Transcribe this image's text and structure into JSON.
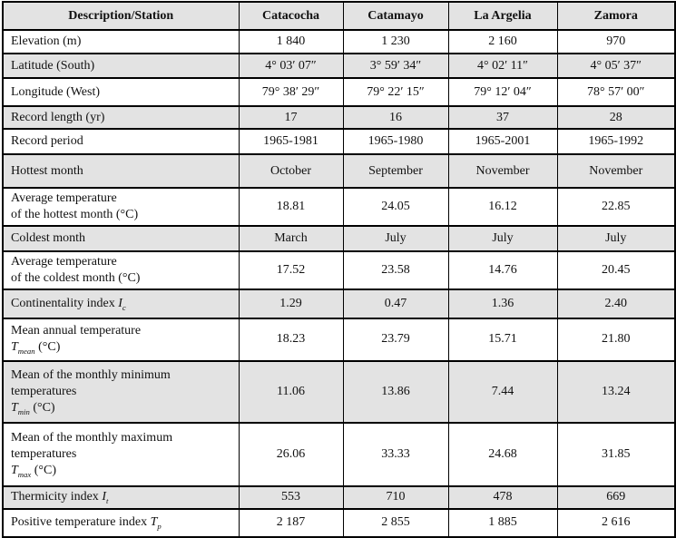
{
  "table": {
    "header": [
      "Description/Station",
      "Catacocha",
      "Catamayo",
      "La Argelia",
      "Zamora"
    ],
    "rows": [
      {
        "label": "Elevation (m)",
        "values": [
          "1 840",
          "1 230",
          "2 160",
          "970"
        ]
      },
      {
        "label": "Latitude (South)",
        "values": [
          "4° 03′ 07″",
          "3° 59′ 34″",
          "4° 02′ 11″",
          "4° 05′ 37″"
        ]
      },
      {
        "label": "Longitude (West)",
        "values": [
          "79° 38′ 29″",
          "79° 22′ 15″",
          "79° 12′ 04″",
          "78° 57′ 00″"
        ]
      },
      {
        "label": "Record length (yr)",
        "values": [
          "17",
          "16",
          "37",
          "28"
        ]
      },
      {
        "label": "Record period",
        "values": [
          "1965-1981",
          "1965-1980",
          "1965-2001",
          "1965-1992"
        ]
      },
      {
        "label": "Hottest month",
        "values": [
          "October",
          "September",
          "November",
          "November"
        ]
      },
      {
        "label": "Average temperature\nof the hottest month (°C)",
        "values": [
          "18.81",
          "24.05",
          "16.12",
          "22.85"
        ]
      },
      {
        "label": "Coldest month",
        "values": [
          "March",
          "July",
          "July",
          "July"
        ]
      },
      {
        "label": "Average temperature\nof the coldest month (°C)",
        "values": [
          "17.52",
          "23.58",
          "14.76",
          "20.45"
        ]
      },
      {
        "label": "Continentality index {I_c}",
        "values": [
          "1.29",
          "0.47",
          "1.36",
          "2.40"
        ]
      },
      {
        "label": "Mean annual temperature\n{T_mean} (°C)",
        "values": [
          "18.23",
          "23.79",
          "15.71",
          "21.80"
        ]
      },
      {
        "label": "Mean of the monthly minimum\ntemperatures\n{T_min} (°C)",
        "values": [
          "11.06",
          "13.86",
          "7.44",
          "13.24"
        ]
      },
      {
        "label": "Mean of the monthly maximum\ntemperatures\n{T_max} (°C)",
        "values": [
          "26.06",
          "33.33",
          "24.68",
          "31.85"
        ]
      },
      {
        "label": "Thermicity index {I_t}",
        "values": [
          "553",
          "710",
          "478",
          "669"
        ]
      },
      {
        "label": "Positive temperature index {T_p}",
        "values": [
          "2 187",
          "2 855",
          "1 885",
          "2 616"
        ]
      }
    ]
  },
  "colors": {
    "shaded_row_bg": "#e3e3e3",
    "plain_row_bg": "#ffffff",
    "border": "#000000",
    "text": "#111111"
  }
}
